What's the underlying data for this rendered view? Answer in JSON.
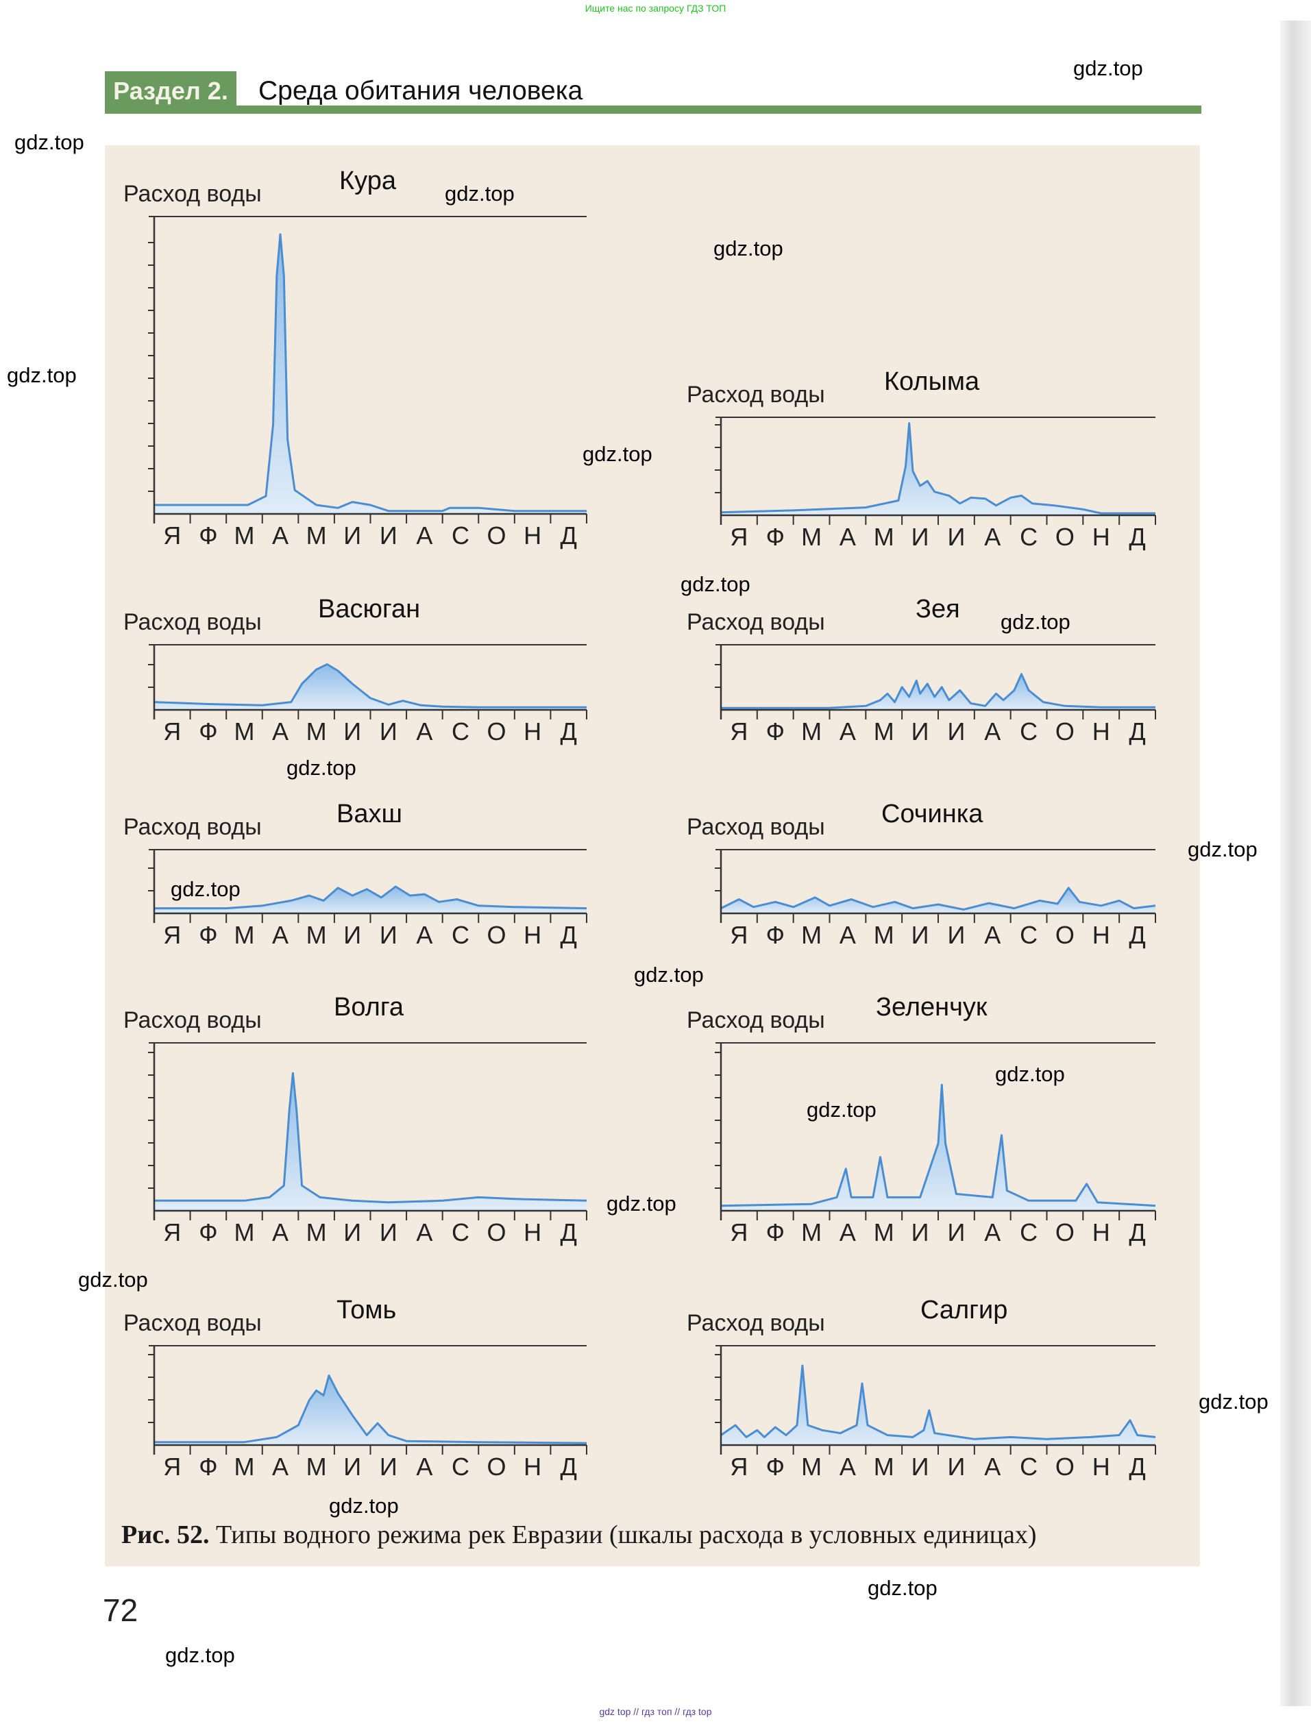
{
  "watermarks": {
    "top": "Ищите нас по запросу ГДЗ ТОП",
    "bottom": "gdz top // гдз топ // гдз top",
    "site": "gdz.top"
  },
  "header": {
    "section_label": "Раздел 2.",
    "section_title": "Среда обитания человека"
  },
  "caption": {
    "number": "Рис. 52.",
    "text": " Типы водного режима рек Евразии (шкалы расхода в условных единицах)"
  },
  "page_number": "72",
  "colors": {
    "accent_green": "#6a9a5e",
    "fill_blue": "#bcd6f0",
    "line_blue": "#4a8dd0",
    "figure_bg": "#f3ebe0"
  },
  "chart_data": [
    {
      "type": "area",
      "title": "Кура",
      "ylabel": "Расход воды",
      "ylim": [
        0,
        100
      ],
      "categories": [
        "Я",
        "Ф",
        "М",
        "А",
        "М",
        "И",
        "И",
        "А",
        "С",
        "О",
        "Н",
        "Д"
      ],
      "points": [
        [
          0,
          3
        ],
        [
          2.6,
          3
        ],
        [
          3.1,
          6
        ],
        [
          3.3,
          30
        ],
        [
          3.4,
          80
        ],
        [
          3.5,
          94
        ],
        [
          3.6,
          80
        ],
        [
          3.7,
          25
        ],
        [
          3.9,
          8
        ],
        [
          4.5,
          3
        ],
        [
          5.1,
          2
        ],
        [
          5.5,
          4
        ],
        [
          6,
          3
        ],
        [
          6.5,
          1
        ],
        [
          8,
          1
        ],
        [
          8.2,
          2
        ],
        [
          9,
          2
        ],
        [
          10,
          1
        ],
        [
          12,
          1
        ]
      ]
    },
    {
      "type": "area",
      "title": "Колыма",
      "ylabel": "Расход воды",
      "ylim": [
        0,
        100
      ],
      "categories": [
        "Я",
        "Ф",
        "М",
        "А",
        "М",
        "И",
        "И",
        "А",
        "С",
        "О",
        "Н",
        "Д"
      ],
      "points": [
        [
          0,
          3
        ],
        [
          2,
          5
        ],
        [
          4,
          8
        ],
        [
          4.9,
          15
        ],
        [
          5.1,
          50
        ],
        [
          5.2,
          94
        ],
        [
          5.3,
          45
        ],
        [
          5.5,
          30
        ],
        [
          5.7,
          35
        ],
        [
          5.9,
          24
        ],
        [
          6.3,
          20
        ],
        [
          6.6,
          12
        ],
        [
          6.9,
          18
        ],
        [
          7.3,
          17
        ],
        [
          7.6,
          10
        ],
        [
          8,
          18
        ],
        [
          8.3,
          20
        ],
        [
          8.6,
          12
        ],
        [
          9.2,
          10
        ],
        [
          10,
          6
        ],
        [
          10.5,
          2
        ],
        [
          12,
          2
        ]
      ]
    },
    {
      "type": "area",
      "title": "Васюган",
      "ylabel": "Расход воды",
      "ylim": [
        0,
        100
      ],
      "categories": [
        "Я",
        "Ф",
        "М",
        "А",
        "М",
        "И",
        "И",
        "А",
        "С",
        "О",
        "Н",
        "Д"
      ],
      "points": [
        [
          0,
          12
        ],
        [
          1.5,
          9
        ],
        [
          3,
          7
        ],
        [
          3.8,
          12
        ],
        [
          4.1,
          40
        ],
        [
          4.5,
          62
        ],
        [
          4.8,
          70
        ],
        [
          5.1,
          60
        ],
        [
          5.5,
          40
        ],
        [
          6,
          18
        ],
        [
          6.5,
          8
        ],
        [
          6.9,
          14
        ],
        [
          7.4,
          7
        ],
        [
          8,
          5
        ],
        [
          9,
          4
        ],
        [
          12,
          4
        ]
      ]
    },
    {
      "type": "area",
      "title": "Зея",
      "ylabel": "Расход воды",
      "ylim": [
        0,
        100
      ],
      "categories": [
        "Я",
        "Ф",
        "М",
        "А",
        "М",
        "И",
        "И",
        "А",
        "С",
        "О",
        "Н",
        "Д"
      ],
      "points": [
        [
          0,
          3
        ],
        [
          3,
          3
        ],
        [
          4,
          6
        ],
        [
          4.4,
          15
        ],
        [
          4.6,
          25
        ],
        [
          4.8,
          12
        ],
        [
          5,
          35
        ],
        [
          5.2,
          20
        ],
        [
          5.4,
          45
        ],
        [
          5.5,
          25
        ],
        [
          5.7,
          40
        ],
        [
          5.9,
          20
        ],
        [
          6.1,
          35
        ],
        [
          6.3,
          15
        ],
        [
          6.6,
          30
        ],
        [
          6.9,
          10
        ],
        [
          7.3,
          6
        ],
        [
          7.6,
          25
        ],
        [
          7.8,
          15
        ],
        [
          8.1,
          30
        ],
        [
          8.3,
          55
        ],
        [
          8.5,
          30
        ],
        [
          8.9,
          12
        ],
        [
          9.5,
          6
        ],
        [
          10.5,
          4
        ],
        [
          12,
          4
        ]
      ]
    },
    {
      "type": "area",
      "title": "Вахш",
      "ylabel": "Расход воды",
      "ylim": [
        0,
        100
      ],
      "categories": [
        "Я",
        "Ф",
        "М",
        "А",
        "М",
        "И",
        "И",
        "А",
        "С",
        "О",
        "Н",
        "Д"
      ],
      "points": [
        [
          0,
          8
        ],
        [
          2,
          8
        ],
        [
          3,
          12
        ],
        [
          3.8,
          20
        ],
        [
          4.3,
          28
        ],
        [
          4.7,
          20
        ],
        [
          5.1,
          40
        ],
        [
          5.5,
          28
        ],
        [
          5.9,
          38
        ],
        [
          6.3,
          25
        ],
        [
          6.7,
          42
        ],
        [
          7.1,
          28
        ],
        [
          7.5,
          30
        ],
        [
          7.9,
          18
        ],
        [
          8.4,
          22
        ],
        [
          9,
          12
        ],
        [
          10,
          10
        ],
        [
          12,
          8
        ]
      ]
    },
    {
      "type": "area",
      "title": "Сочинка",
      "ylabel": "Расход воды",
      "ylim": [
        0,
        100
      ],
      "categories": [
        "Я",
        "Ф",
        "М",
        "А",
        "М",
        "И",
        "И",
        "А",
        "С",
        "О",
        "Н",
        "Д"
      ],
      "points": [
        [
          0,
          8
        ],
        [
          0.5,
          22
        ],
        [
          0.9,
          10
        ],
        [
          1.5,
          18
        ],
        [
          2,
          10
        ],
        [
          2.6,
          25
        ],
        [
          3,
          12
        ],
        [
          3.6,
          22
        ],
        [
          4.2,
          10
        ],
        [
          4.8,
          18
        ],
        [
          5.3,
          8
        ],
        [
          6,
          14
        ],
        [
          6.7,
          6
        ],
        [
          7.4,
          16
        ],
        [
          8.1,
          8
        ],
        [
          8.8,
          20
        ],
        [
          9.3,
          15
        ],
        [
          9.6,
          40
        ],
        [
          9.9,
          18
        ],
        [
          10.5,
          12
        ],
        [
          11,
          20
        ],
        [
          11.4,
          8
        ],
        [
          12,
          12
        ]
      ]
    },
    {
      "type": "area",
      "title": "Волга",
      "ylabel": "Расход воды",
      "ylim": [
        0,
        100
      ],
      "categories": [
        "Я",
        "Ф",
        "М",
        "А",
        "М",
        "И",
        "И",
        "А",
        "С",
        "О",
        "Н",
        "Д"
      ],
      "points": [
        [
          0,
          6
        ],
        [
          2.5,
          6
        ],
        [
          3.2,
          8
        ],
        [
          3.6,
          15
        ],
        [
          3.75,
          60
        ],
        [
          3.85,
          82
        ],
        [
          3.95,
          60
        ],
        [
          4.1,
          15
        ],
        [
          4.6,
          8
        ],
        [
          5.5,
          6
        ],
        [
          6.5,
          5
        ],
        [
          8,
          6
        ],
        [
          9,
          8
        ],
        [
          10,
          7
        ],
        [
          12,
          6
        ]
      ]
    },
    {
      "type": "area",
      "title": "Зеленчук",
      "ylabel": "Расход воды",
      "ylim": [
        0,
        100
      ],
      "categories": [
        "Я",
        "Ф",
        "М",
        "А",
        "М",
        "И",
        "И",
        "А",
        "С",
        "О",
        "Н",
        "Д"
      ],
      "points": [
        [
          0,
          3
        ],
        [
          2.5,
          4
        ],
        [
          3.2,
          8
        ],
        [
          3.45,
          25
        ],
        [
          3.6,
          8
        ],
        [
          4.2,
          8
        ],
        [
          4.4,
          32
        ],
        [
          4.6,
          8
        ],
        [
          5.5,
          8
        ],
        [
          6,
          40
        ],
        [
          6.1,
          75
        ],
        [
          6.2,
          40
        ],
        [
          6.5,
          10
        ],
        [
          7.5,
          8
        ],
        [
          7.75,
          45
        ],
        [
          7.9,
          12
        ],
        [
          8.5,
          6
        ],
        [
          9.8,
          6
        ],
        [
          10.1,
          16
        ],
        [
          10.4,
          5
        ],
        [
          12,
          3
        ]
      ]
    },
    {
      "type": "area",
      "title": "Томь",
      "ylabel": "Расход воды",
      "ylim": [
        0,
        100
      ],
      "categories": [
        "Я",
        "Ф",
        "М",
        "А",
        "М",
        "И",
        "И",
        "А",
        "С",
        "О",
        "Н",
        "Д"
      ],
      "points": [
        [
          0,
          3
        ],
        [
          2.5,
          3
        ],
        [
          3.4,
          8
        ],
        [
          4,
          20
        ],
        [
          4.3,
          45
        ],
        [
          4.5,
          55
        ],
        [
          4.7,
          50
        ],
        [
          4.85,
          70
        ],
        [
          5.1,
          52
        ],
        [
          5.5,
          30
        ],
        [
          5.9,
          10
        ],
        [
          6.2,
          22
        ],
        [
          6.5,
          10
        ],
        [
          7,
          4
        ],
        [
          9,
          3
        ],
        [
          12,
          2
        ]
      ]
    },
    {
      "type": "area",
      "title": "Салгир",
      "ylabel": "Расход воды",
      "ylim": [
        0,
        100
      ],
      "categories": [
        "Я",
        "Ф",
        "М",
        "А",
        "М",
        "И",
        "И",
        "А",
        "С",
        "О",
        "Н",
        "Д"
      ],
      "points": [
        [
          0,
          10
        ],
        [
          0.4,
          20
        ],
        [
          0.7,
          8
        ],
        [
          1,
          15
        ],
        [
          1.2,
          8
        ],
        [
          1.5,
          18
        ],
        [
          1.8,
          10
        ],
        [
          2.1,
          20
        ],
        [
          2.25,
          80
        ],
        [
          2.4,
          20
        ],
        [
          2.8,
          15
        ],
        [
          3.3,
          12
        ],
        [
          3.75,
          20
        ],
        [
          3.9,
          62
        ],
        [
          4.05,
          20
        ],
        [
          4.6,
          10
        ],
        [
          5.3,
          8
        ],
        [
          5.6,
          15
        ],
        [
          5.75,
          35
        ],
        [
          5.9,
          12
        ],
        [
          7,
          6
        ],
        [
          8,
          8
        ],
        [
          9,
          6
        ],
        [
          10.2,
          8
        ],
        [
          11,
          10
        ],
        [
          11.3,
          25
        ],
        [
          11.5,
          10
        ],
        [
          12,
          8
        ]
      ]
    }
  ]
}
